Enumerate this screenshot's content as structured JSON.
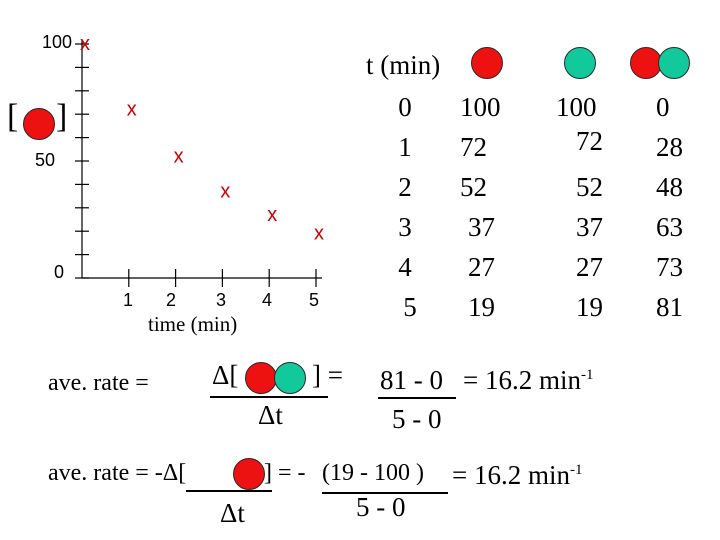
{
  "graph": {
    "y_label_100": "100",
    "y_label_50": "50",
    "y_label_0": "0",
    "bracket_open": "[",
    "bracket_close": "]",
    "x_ticks": [
      "1",
      "2",
      "3",
      "4",
      "5"
    ],
    "x_axis_label": "time (min)",
    "marker": "x",
    "colors": {
      "marker": "#cc0000",
      "axis": "#000000"
    }
  },
  "chart_data": {
    "type": "scatter",
    "x": [
      0,
      1,
      2,
      3,
      4,
      5
    ],
    "y": [
      100,
      72,
      52,
      37,
      27,
      19
    ],
    "xlabel": "time (min)",
    "ylabel": "",
    "xlim": [
      0,
      5
    ],
    "ylim": [
      0,
      100
    ]
  },
  "table": {
    "header": "t (min)",
    "t": [
      "0",
      "1",
      "2",
      "3",
      "4",
      "5"
    ],
    "red": [
      "100",
      "72",
      "52",
      "37",
      "27",
      "19"
    ],
    "green": [
      "100",
      "72",
      "52",
      "37",
      "27",
      "19"
    ],
    "pair": [
      "0",
      "28",
      "48",
      "63",
      "73",
      "81"
    ]
  },
  "formula1": {
    "lhs": "ave. rate =",
    "delta_open": "Δ[",
    "close_eq": "] =",
    "denominator": "Δt",
    "numerator": "81 - 0",
    "result": "= 16.2 min",
    "exp": "-1",
    "den_value": "5 - 0"
  },
  "formula2": {
    "lhs": "ave. rate = -Δ[",
    "close_eq": "] = -",
    "numerator": "(19 - 100 )",
    "result": "= 16.2 min",
    "exp": "-1",
    "den_value": "5 - 0",
    "denominator": "Δt"
  }
}
